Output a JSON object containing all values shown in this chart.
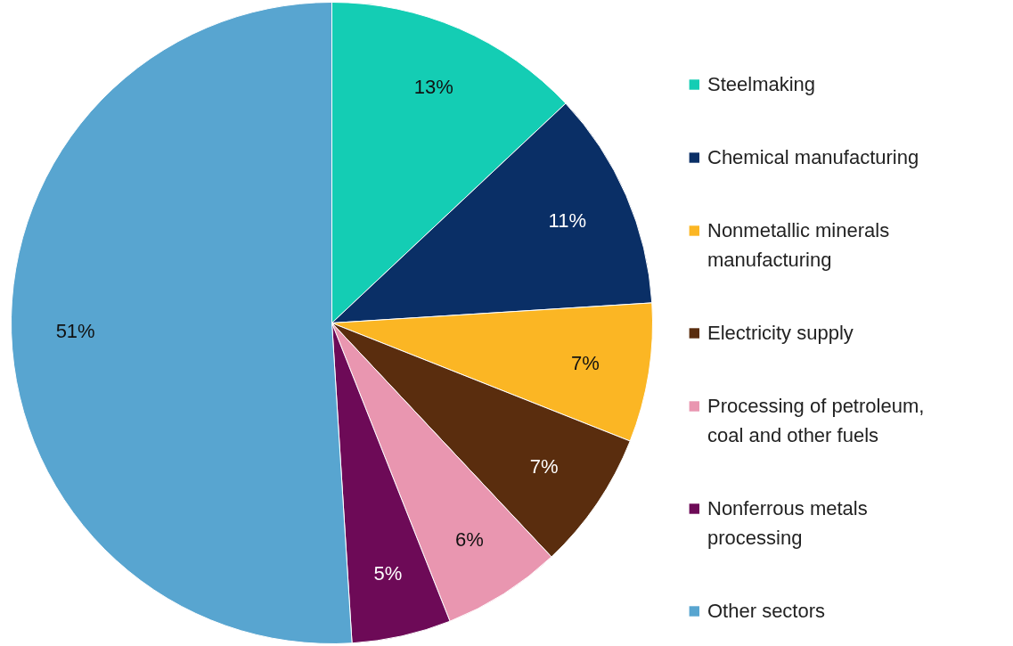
{
  "chart_data": {
    "type": "pie",
    "categories": [
      "Steelmaking",
      "Chemical manufacturing",
      "Nonmetallic minerals manufacturing",
      "Electricity supply",
      "Processing of petroleum, coal and other fuels",
      "Nonferrous metals processing",
      "Other sectors"
    ],
    "values": [
      13,
      11,
      7,
      7,
      6,
      5,
      51
    ],
    "colors": [
      "#14cdb4",
      "#0a2f66",
      "#fbb624",
      "#5a2d0e",
      "#e996b0",
      "#6d0a57",
      "#58a5d0"
    ],
    "value_labels": [
      "13%",
      "11%",
      "7%",
      "7%",
      "6%",
      "5%",
      "51%"
    ],
    "legend": "right"
  }
}
